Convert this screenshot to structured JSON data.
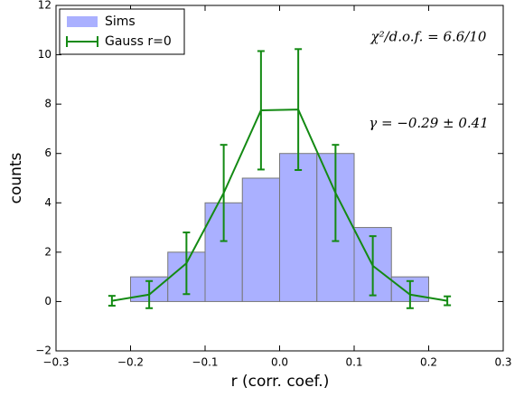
{
  "chart_data": {
    "type": "histogram",
    "xlabel": "r (corr. coef.)",
    "ylabel": "counts",
    "bins": [
      -0.25,
      -0.2,
      -0.15,
      -0.1,
      -0.05,
      0.0,
      0.05,
      0.1,
      0.15,
      0.2,
      0.25
    ],
    "series": [
      {
        "name": "Sims",
        "type": "histogram",
        "color": "#aab0ff",
        "values": [
          0,
          1,
          2,
          4,
          5,
          6,
          6,
          3,
          1,
          0
        ]
      },
      {
        "name": "Gauss r=0",
        "type": "errorbar",
        "color": "#138a13",
        "x": [
          -0.225,
          -0.175,
          -0.125,
          -0.075,
          -0.025,
          0.025,
          0.075,
          0.125,
          0.175,
          0.225
        ],
        "values": [
          0.03,
          0.28,
          1.55,
          4.4,
          7.75,
          7.78,
          4.4,
          1.45,
          0.28,
          0.03
        ],
        "errors": [
          0.2,
          0.55,
          1.25,
          1.95,
          2.4,
          2.45,
          1.95,
          1.2,
          0.55,
          0.18
        ]
      }
    ],
    "annotations": [
      {
        "text": "χ²/d.o.f. = 6.6/10",
        "x": 0.2,
        "y": 10.7
      },
      {
        "text": "γ = −0.29 ± 0.41",
        "x": 0.2,
        "y": 7.2
      }
    ],
    "xlim": [
      -0.3,
      0.3
    ],
    "xticks": [
      {
        "value": -0.3,
        "label": "−0.3"
      },
      {
        "value": -0.2,
        "label": "−0.2"
      },
      {
        "value": -0.1,
        "label": "−0.1"
      },
      {
        "value": 0,
        "label": "0.0"
      },
      {
        "value": 0.1,
        "label": "0.1"
      },
      {
        "value": 0.2,
        "label": "0.2"
      },
      {
        "value": 0.3,
        "label": "0.3"
      }
    ],
    "ylim": [
      -2,
      12
    ],
    "yticks": [
      {
        "value": -2,
        "label": "−2"
      },
      0,
      2,
      4,
      6,
      8,
      10,
      12
    ],
    "legend": "upper left"
  }
}
